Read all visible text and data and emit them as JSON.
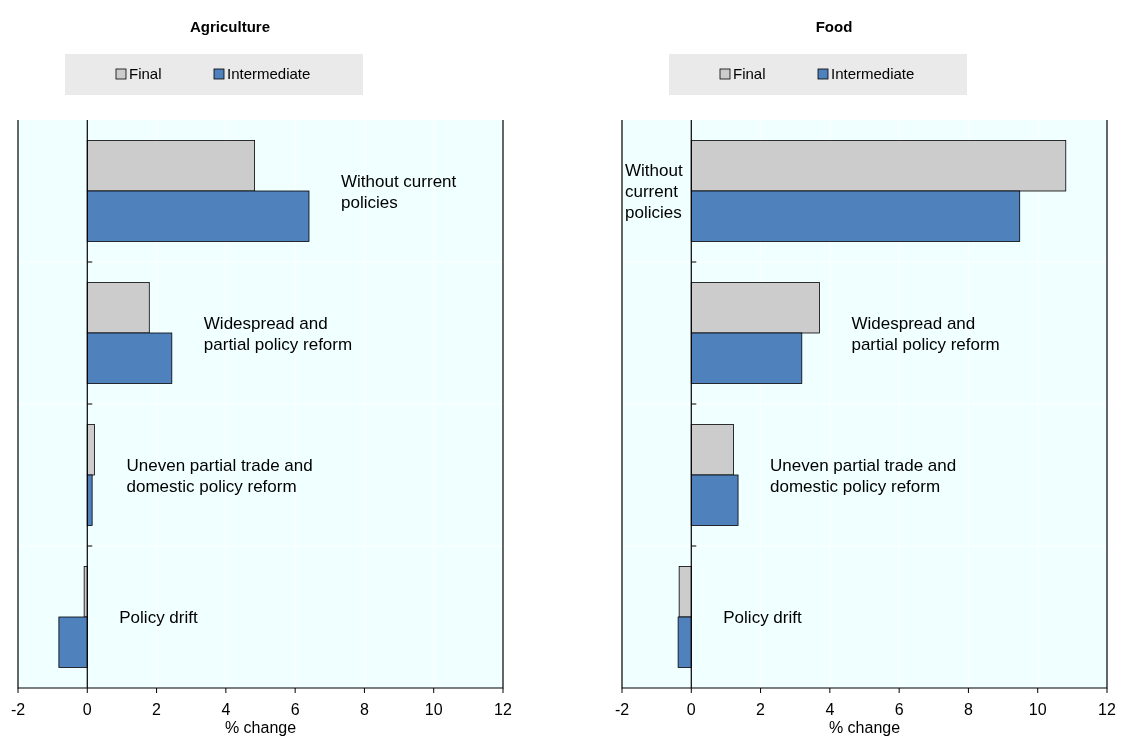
{
  "chart_data": [
    {
      "type": "bar",
      "orientation": "horizontal",
      "title": "Agriculture",
      "xlabel": "% change",
      "categories": [
        "Without current policies",
        "Widespread and partial policy reform",
        "Uneven partial trade and domestic policy reform",
        "Policy drift"
      ],
      "series": [
        {
          "name": "Final",
          "color": "#cccccc",
          "values": [
            4.83,
            1.79,
            0.21,
            -0.09
          ]
        },
        {
          "name": "Intermediate",
          "color": "#4f81bd",
          "values": [
            6.4,
            2.44,
            0.14,
            -0.82
          ]
        }
      ],
      "xlim": [
        -2,
        12
      ],
      "xticks": [
        -2,
        0,
        2,
        4,
        6,
        8,
        10,
        12
      ],
      "grid": true,
      "legend": "top"
    },
    {
      "type": "bar",
      "orientation": "horizontal",
      "title": "Food",
      "xlabel": "% change",
      "categories": [
        "Without current policies",
        "Widespread and partial policy reform",
        "Uneven partial trade and domestic policy reform",
        "Policy drift"
      ],
      "series": [
        {
          "name": "Final",
          "color": "#cccccc",
          "values": [
            10.81,
            3.7,
            1.22,
            -0.35
          ]
        },
        {
          "name": "Intermediate",
          "color": "#4f81bd",
          "values": [
            9.48,
            3.19,
            1.35,
            -0.38
          ]
        }
      ],
      "xlim": [
        -2,
        12
      ],
      "xticks": [
        -2,
        0,
        2,
        4,
        6,
        8,
        10,
        12
      ],
      "grid": true,
      "legend": "top"
    }
  ]
}
